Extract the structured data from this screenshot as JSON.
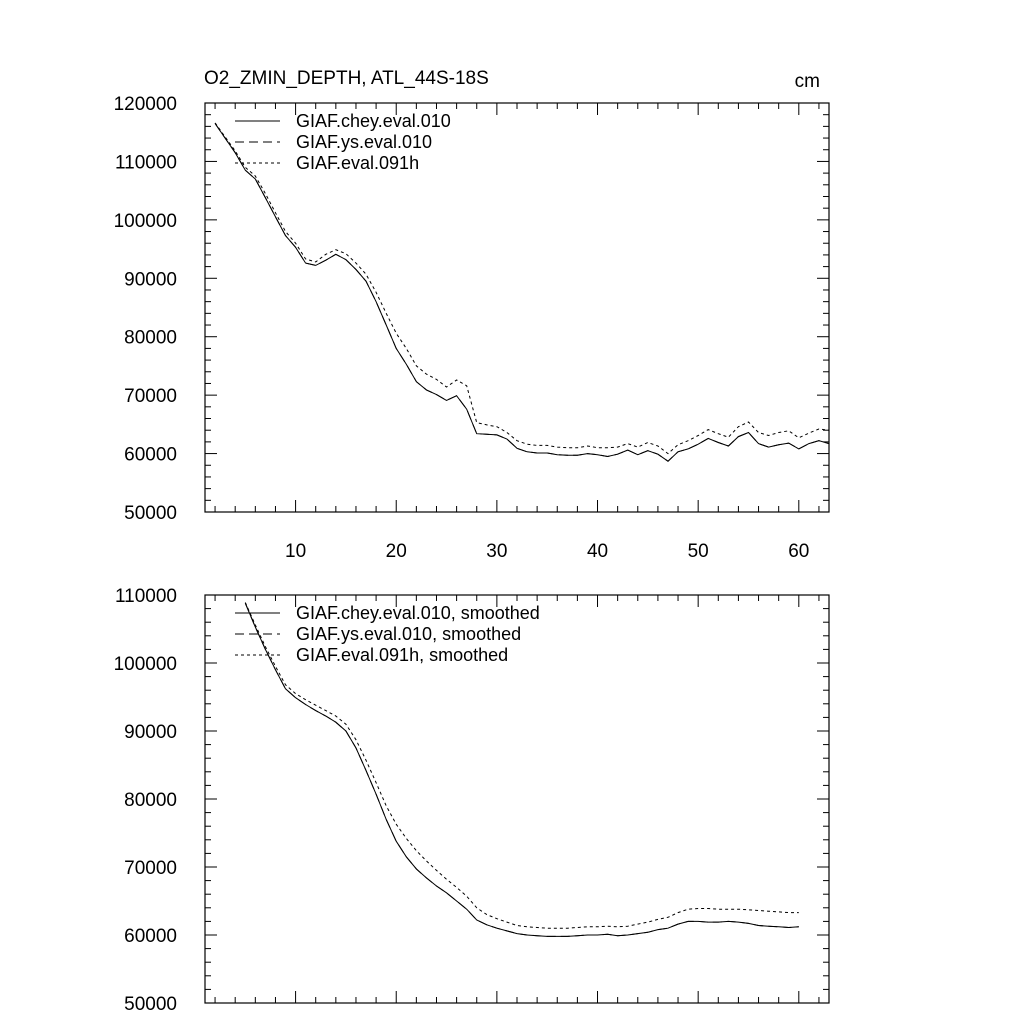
{
  "figure": {
    "title": "O2_ZMIN_DEPTH, ATL_44S-18S",
    "units": "cm"
  },
  "chart_data": [
    {
      "type": "line",
      "title": "O2_ZMIN_DEPTH, ATL_44S-18S",
      "units": "cm",
      "xlabel": "",
      "ylabel": "",
      "xlim": [
        1,
        63
      ],
      "ylim": [
        50000,
        120000
      ],
      "x_major_ticks": [
        10,
        20,
        30,
        40,
        50,
        60
      ],
      "x_tick_labels": [
        "10",
        "20",
        "30",
        "40",
        "50",
        "60"
      ],
      "y_major_ticks": [
        50000,
        60000,
        70000,
        80000,
        90000,
        100000,
        110000,
        120000
      ],
      "y_tick_labels": [
        "50000",
        "60000",
        "70000",
        "80000",
        "90000",
        "100000",
        "110000",
        "120000"
      ],
      "legend_position": "top-left",
      "series": [
        {
          "name": "GIAF.chey.eval.010",
          "dash": "solid",
          "x": [
            2,
            3,
            4,
            5,
            6,
            7,
            8,
            9,
            10,
            11,
            12,
            13,
            14,
            15,
            16,
            17,
            18,
            19,
            20,
            21,
            22,
            23,
            24,
            25,
            26,
            27,
            28,
            29,
            30,
            31,
            32,
            33,
            34,
            35,
            36,
            37,
            38,
            39,
            40,
            41,
            42,
            43,
            44,
            45,
            46,
            47,
            48,
            49,
            50,
            51,
            52,
            53,
            54,
            55,
            56,
            57,
            58,
            59,
            60,
            61,
            62,
            63
          ],
          "y": [
            116500,
            114000,
            111500,
            108500,
            107000,
            103800,
            100500,
            97300,
            95300,
            92600,
            92200,
            93100,
            94100,
            93200,
            91500,
            89500,
            86000,
            82000,
            78000,
            75300,
            72300,
            70900,
            70100,
            69100,
            69900,
            67600,
            63400,
            63300,
            63200,
            62500,
            60900,
            60300,
            60100,
            60100,
            59800,
            59700,
            59700,
            60000,
            59800,
            59500,
            59900,
            60600,
            59800,
            60500,
            59900,
            58700,
            60300,
            60800,
            61600,
            62600,
            61900,
            61300,
            62900,
            63600,
            61700,
            61100,
            61500,
            61800,
            60800,
            61700,
            62200,
            61700
          ]
        },
        {
          "name": "GIAF.ys.eval.010",
          "dash": "long-dash",
          "x": [
            2,
            3,
            4,
            5,
            6,
            7,
            8,
            9,
            10,
            11,
            12,
            13,
            14,
            15,
            16,
            17,
            18,
            19,
            20,
            21,
            22,
            23,
            24,
            25,
            26,
            27,
            28,
            29,
            30,
            31,
            32,
            33,
            34,
            35,
            36,
            37,
            38,
            39,
            40,
            41,
            42,
            43,
            44,
            45,
            46,
            47,
            48,
            49,
            50,
            51,
            52,
            53,
            54,
            55,
            56,
            57,
            58,
            59,
            60,
            61,
            62,
            63
          ],
          "y": [
            116500,
            114000,
            111500,
            108500,
            107000,
            103800,
            100500,
            97300,
            95300,
            92600,
            92200,
            93100,
            94100,
            93200,
            91500,
            89500,
            86000,
            82000,
            78000,
            75300,
            72300,
            70900,
            70100,
            69100,
            69900,
            67600,
            63400,
            63300,
            63200,
            62500,
            60900,
            60300,
            60100,
            60100,
            59800,
            59700,
            59700,
            60000,
            59800,
            59500,
            59900,
            60600,
            59800,
            60500,
            59900,
            58700,
            60300,
            60800,
            61600,
            62600,
            61900,
            61300,
            62900,
            63600,
            61700,
            61100,
            61500,
            61800,
            60800,
            61700,
            62200,
            61700
          ]
        },
        {
          "name": "GIAF.eval.091h",
          "dash": "short-dash",
          "x": [
            2,
            3,
            4,
            5,
            6,
            7,
            8,
            9,
            10,
            11,
            12,
            13,
            14,
            15,
            16,
            17,
            18,
            19,
            20,
            21,
            22,
            23,
            24,
            25,
            26,
            27,
            28,
            29,
            30,
            31,
            32,
            33,
            34,
            35,
            36,
            37,
            38,
            39,
            40,
            41,
            42,
            43,
            44,
            45,
            46,
            47,
            48,
            49,
            50,
            51,
            52,
            53,
            54,
            55,
            56,
            57,
            58,
            59,
            60,
            61,
            62,
            63
          ],
          "y": [
            116600,
            114200,
            111800,
            109000,
            107500,
            104500,
            101200,
            98000,
            96000,
            93300,
            92800,
            94100,
            94900,
            94200,
            92600,
            90700,
            87600,
            84000,
            80600,
            78000,
            75000,
            73600,
            72700,
            71400,
            72600,
            71600,
            65300,
            64900,
            64600,
            63600,
            62200,
            61600,
            61400,
            61400,
            61100,
            61000,
            61000,
            61300,
            61000,
            61000,
            61100,
            61700,
            61100,
            61900,
            61300,
            60000,
            61500,
            62200,
            63100,
            64100,
            63400,
            62800,
            64600,
            65400,
            63600,
            63100,
            63600,
            63900,
            62700,
            63500,
            64200,
            64000
          ]
        }
      ]
    },
    {
      "type": "line",
      "title": "",
      "xlabel": "",
      "ylabel": "",
      "xlim": [
        1,
        63
      ],
      "ylim": [
        50000,
        110000
      ],
      "x_major_ticks": [
        10,
        20,
        30,
        40,
        50,
        60
      ],
      "x_tick_labels": [],
      "y_major_ticks": [
        50000,
        60000,
        70000,
        80000,
        90000,
        100000,
        110000
      ],
      "y_tick_labels": [
        "50000",
        "60000",
        "70000",
        "80000",
        "90000",
        "100000",
        "110000"
      ],
      "legend_position": "top-left",
      "series": [
        {
          "name": "GIAF.chey.eval.010, smoothed",
          "dash": "solid",
          "x": [
            5,
            6,
            7,
            8,
            9,
            10,
            11,
            12,
            13,
            14,
            15,
            16,
            17,
            18,
            19,
            20,
            21,
            22,
            23,
            24,
            25,
            26,
            27,
            28,
            29,
            30,
            31,
            32,
            33,
            34,
            35,
            36,
            37,
            38,
            39,
            40,
            41,
            42,
            43,
            44,
            45,
            46,
            47,
            48,
            49,
            50,
            51,
            52,
            53,
            54,
            55,
            56,
            57,
            58,
            59,
            60
          ],
          "y": [
            108800,
            105300,
            102000,
            99000,
            96200,
            94900,
            93900,
            93000,
            92200,
            91300,
            90000,
            87500,
            84200,
            80700,
            77000,
            73800,
            71500,
            69700,
            68400,
            67200,
            66200,
            65000,
            63800,
            62200,
            61500,
            61000,
            60600,
            60200,
            60000,
            59900,
            59800,
            59800,
            59800,
            59900,
            60000,
            60000,
            60100,
            59900,
            60000,
            60200,
            60400,
            60800,
            61000,
            61600,
            62000,
            62000,
            61900,
            61900,
            62000,
            61900,
            61700,
            61400,
            61300,
            61200,
            61100,
            61200
          ]
        },
        {
          "name": "GIAF.ys.eval.010, smoothed",
          "dash": "long-dash",
          "x": [
            5,
            6,
            7,
            8,
            9,
            10,
            11,
            12,
            13,
            14,
            15,
            16,
            17,
            18,
            19,
            20,
            21,
            22,
            23,
            24,
            25,
            26,
            27,
            28,
            29,
            30,
            31,
            32,
            33,
            34,
            35,
            36,
            37,
            38,
            39,
            40,
            41,
            42,
            43,
            44,
            45,
            46,
            47,
            48,
            49,
            50,
            51,
            52,
            53,
            54,
            55,
            56,
            57,
            58,
            59,
            60
          ],
          "y": [
            108800,
            105300,
            102000,
            99000,
            96200,
            94900,
            93900,
            93000,
            92200,
            91300,
            90000,
            87500,
            84200,
            80700,
            77000,
            73800,
            71500,
            69700,
            68400,
            67200,
            66200,
            65000,
            63800,
            62200,
            61500,
            61000,
            60600,
            60200,
            60000,
            59900,
            59800,
            59800,
            59800,
            59900,
            60000,
            60000,
            60100,
            59900,
            60000,
            60200,
            60400,
            60800,
            61000,
            61600,
            62000,
            62000,
            61900,
            61900,
            62000,
            61900,
            61700,
            61400,
            61300,
            61200,
            61100,
            61200
          ]
        },
        {
          "name": "GIAF.eval.091h, smoothed",
          "dash": "short-dash",
          "x": [
            5,
            6,
            7,
            8,
            9,
            10,
            11,
            12,
            13,
            14,
            15,
            16,
            17,
            18,
            19,
            20,
            21,
            22,
            23,
            24,
            25,
            26,
            27,
            28,
            29,
            30,
            31,
            32,
            33,
            34,
            35,
            36,
            37,
            38,
            39,
            40,
            41,
            42,
            43,
            44,
            45,
            46,
            47,
            48,
            49,
            50,
            51,
            52,
            53,
            54,
            55,
            56,
            57,
            58,
            59,
            60
          ],
          "y": [
            108900,
            105600,
            102400,
            99500,
            96800,
            95500,
            94600,
            93800,
            93000,
            92200,
            91000,
            88700,
            85700,
            82400,
            79000,
            76300,
            74200,
            72400,
            70900,
            69500,
            68200,
            67000,
            65700,
            64000,
            63000,
            62400,
            61900,
            61400,
            61200,
            61100,
            61000,
            61000,
            61000,
            61100,
            61200,
            61200,
            61300,
            61200,
            61300,
            61600,
            61900,
            62300,
            62600,
            63300,
            63800,
            63900,
            63900,
            63800,
            63800,
            63800,
            63700,
            63600,
            63500,
            63400,
            63300,
            63300
          ]
        }
      ]
    }
  ]
}
